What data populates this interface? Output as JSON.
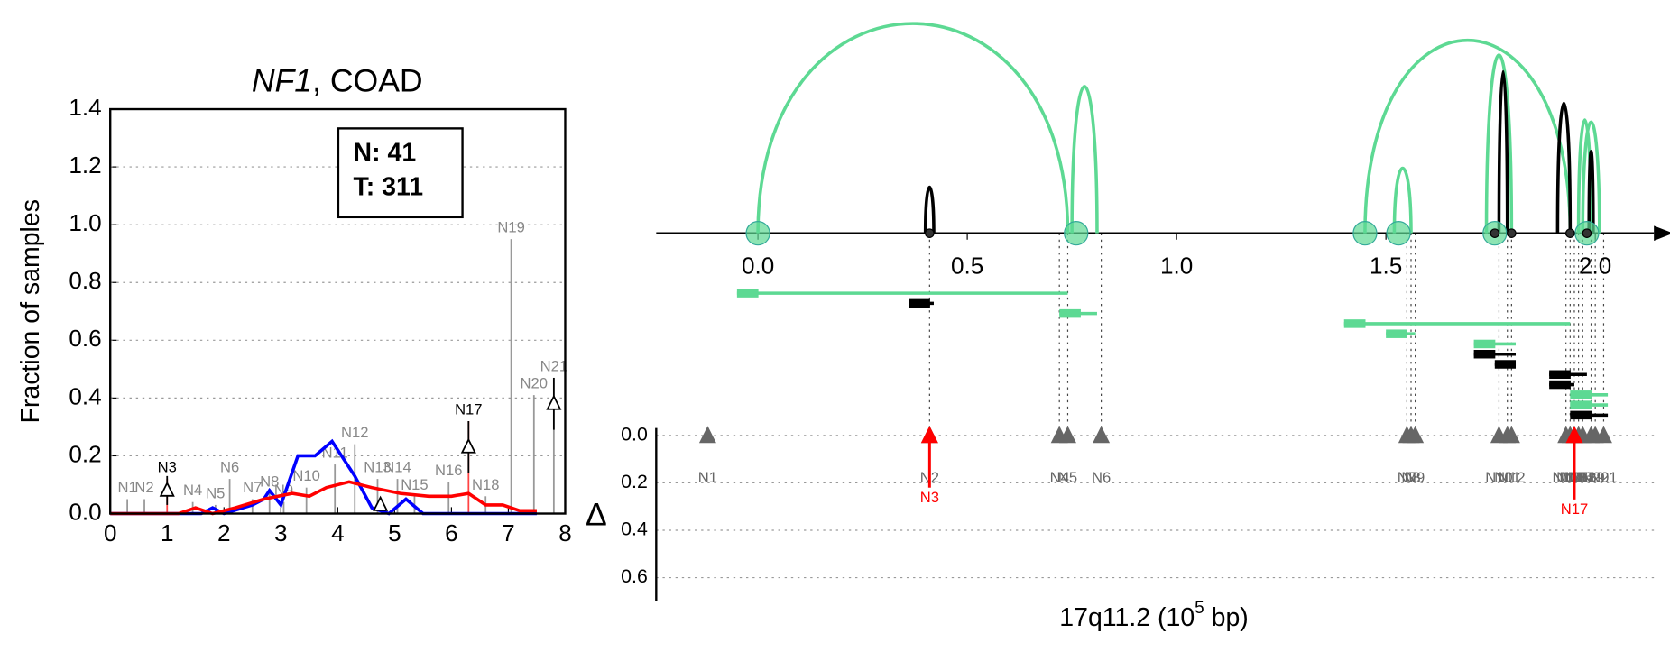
{
  "chart_data": [
    {
      "type": "line",
      "title_italic": "NF1",
      "title": ", COAD",
      "ylabel": "Fraction of samples",
      "xlim": [
        0,
        8
      ],
      "ylim": [
        0,
        1.4
      ],
      "xticks": [
        0,
        1,
        2,
        3,
        4,
        5,
        6,
        7,
        8
      ],
      "yticks": [
        {
          "value": 0,
          "label": "0.0"
        },
        {
          "value": 0.2,
          "label": "0.2"
        },
        {
          "value": 0.4,
          "label": "0.4"
        },
        {
          "value": 0.6,
          "label": "0.6"
        },
        {
          "value": 0.8,
          "label": "0.8"
        },
        {
          "value": 1.0,
          "label": "1.0"
        },
        {
          "value": 1.2,
          "label": "1.2"
        },
        {
          "value": 1.4,
          "label": "1.4"
        }
      ],
      "grid": true,
      "legend_lines": [
        "N: 41",
        "T: 311"
      ],
      "series": [
        {
          "color": "#0000ff",
          "x": [
            0,
            1.6,
            1.8,
            2.0,
            2.5,
            2.7,
            2.8,
            3.0,
            3.3,
            3.6,
            3.9,
            4.3,
            4.6,
            4.9,
            5.2,
            5.5,
            7.5
          ],
          "values": [
            0,
            0,
            0.02,
            0,
            0.03,
            0.05,
            0.08,
            0.03,
            0.2,
            0.2,
            0.25,
            0.13,
            0.02,
            0,
            0.05,
            0,
            0
          ]
        },
        {
          "color": "#ff0000",
          "x": [
            0,
            1.2,
            1.5,
            1.8,
            2.2,
            2.7,
            3.2,
            3.5,
            3.8,
            4.2,
            4.6,
            5.1,
            5.6,
            6.0,
            6.3,
            6.6,
            6.9,
            7.2,
            7.5
          ],
          "values": [
            0,
            0,
            0.02,
            0,
            0.02,
            0.05,
            0.07,
            0.06,
            0.09,
            0.11,
            0.09,
            0.07,
            0.06,
            0.06,
            0.07,
            0.03,
            0.03,
            0.01,
            0.01
          ]
        }
      ],
      "sticks": {
        "labels": [
          "N1",
          "N2",
          "N3",
          "N4",
          "N5",
          "N6",
          "N7",
          "N8",
          "N9",
          "N10",
          "N11",
          "N12",
          "N13",
          "N14",
          "N15",
          "N16",
          "N17",
          "N18",
          "N19",
          "N20",
          "N21"
        ],
        "x": [
          0.3,
          0.6,
          1.0,
          1.45,
          1.85,
          2.1,
          2.5,
          2.8,
          3.05,
          3.45,
          3.95,
          4.3,
          4.7,
          5.05,
          5.35,
          5.95,
          6.3,
          6.6,
          7.05,
          7.45,
          7.8
        ],
        "values": [
          0.05,
          0.05,
          0.12,
          0.04,
          0.03,
          0.12,
          0.05,
          0.07,
          0.04,
          0.09,
          0.17,
          0.24,
          0.12,
          0.12,
          0.06,
          0.11,
          0.32,
          0.06,
          0.95,
          0.41,
          0.47
        ],
        "colors": [
          "#888",
          "#888",
          "#000",
          "#888",
          "#888",
          "#888",
          "#888",
          "#888",
          "#888",
          "#888",
          "#888",
          "#888",
          "#888",
          "#888",
          "#888",
          "#888",
          "#000",
          "#888",
          "#888",
          "#888",
          "#888"
        ]
      },
      "points": {
        "x": [
          1.0,
          4.75,
          6.3,
          7.8
        ],
        "values": [
          0.08,
          0.03,
          0.23,
          0.38
        ],
        "errors": [
          0.05,
          0.02,
          0.09,
          0.09
        ]
      }
    },
    {
      "type": "arc",
      "xlim": [
        -0.243,
        2.14
      ],
      "xticks": [
        {
          "value": 0,
          "label": "0.0"
        },
        {
          "value": 0.5,
          "label": "0.5"
        },
        {
          "value": 1.0,
          "label": "1.0"
        },
        {
          "value": 1.5,
          "label": "1.5"
        },
        {
          "value": 2.0,
          "label": "2.0"
        }
      ],
      "xlabel": {
        "text": "17q11.2 (10",
        "sup": "5",
        "tail": " bp)"
      },
      "ylabel": "Δ",
      "ylim": [
        0,
        0.7
      ],
      "yticks": [
        {
          "value": 0,
          "label": "0.0"
        },
        {
          "value": 0.2,
          "label": "0.2"
        },
        {
          "value": 0.4,
          "label": "0.4"
        },
        {
          "value": 0.6,
          "label": "0.6"
        }
      ],
      "arcs": {
        "start": [
          0.0,
          0.75,
          1.45,
          1.52,
          1.74,
          1.96,
          1.97,
          0.4,
          1.77,
          1.91,
          1.985
        ],
        "end": [
          0.74,
          0.81,
          1.94,
          1.56,
          1.8,
          1.99,
          2.01,
          0.42,
          1.79,
          1.94,
          1.995
        ],
        "heights": [
          1.0,
          0.7,
          0.92,
          0.31,
          0.85,
          0.54,
          0.53,
          0.22,
          0.77,
          0.62,
          0.39
        ],
        "colors": [
          "#5dd993",
          "#5dd993",
          "#5dd993",
          "#5dd993",
          "#5dd993",
          "#5dd993",
          "#5dd993",
          "#000",
          "#000",
          "#000",
          "#000"
        ]
      },
      "nodes": {
        "x": [
          0.0,
          0.76,
          1.45,
          1.53,
          1.76,
          1.98,
          0.41,
          1.76,
          1.98,
          1.8,
          1.94
        ],
        "colors": [
          "#5dd993",
          "#5dd993",
          "#5dd993",
          "#5dd993",
          "#5dd993",
          "#5dd993",
          "#333",
          "#333",
          "#333",
          "#333",
          "#333"
        ],
        "sizes": [
          11,
          11,
          11,
          11,
          11,
          11,
          4,
          4,
          4,
          4,
          4
        ]
      },
      "segments": {
        "start": [
          -0.05,
          0.36,
          0.72,
          1.4,
          1.5,
          1.71,
          1.71,
          1.76,
          1.89,
          1.89,
          1.94,
          1.94,
          1.94
        ],
        "end": [
          0.74,
          0.42,
          0.81,
          1.94,
          1.57,
          1.81,
          1.81,
          1.81,
          1.98,
          1.95,
          2.03,
          2.03,
          2.03
        ],
        "colors": [
          "#5dd993",
          "#000",
          "#5dd993",
          "#5dd993",
          "#5dd993",
          "#5dd993",
          "#000",
          "#000",
          "#000",
          "#000",
          "#5dd993",
          "#5dd993",
          "#000"
        ]
      },
      "markers": {
        "labels": [
          "N1",
          "N2",
          "N4",
          "N5",
          "N6",
          "N7",
          "N8",
          "N9",
          "N10",
          "N11",
          "N12",
          "N13",
          "N14",
          "N15",
          "N16",
          "N18",
          "N19",
          "N20",
          "N21"
        ],
        "x": [
          -0.12,
          0.41,
          0.72,
          0.74,
          0.82,
          1.55,
          1.56,
          1.57,
          1.77,
          1.79,
          1.8,
          1.93,
          1.94,
          1.95,
          1.96,
          1.97,
          1.99,
          2.0,
          2.02
        ],
        "values": [
          0,
          0,
          0,
          0,
          0,
          0,
          0,
          0,
          0,
          0,
          0,
          0,
          0,
          0,
          0,
          0,
          0,
          0,
          0
        ],
        "color": "#666"
      },
      "highlights": {
        "labels": [
          "N3",
          "N17"
        ],
        "x": [
          0.41,
          1.95
        ],
        "values": [
          0.22,
          0.27
        ],
        "color": "#ff0000"
      }
    }
  ]
}
